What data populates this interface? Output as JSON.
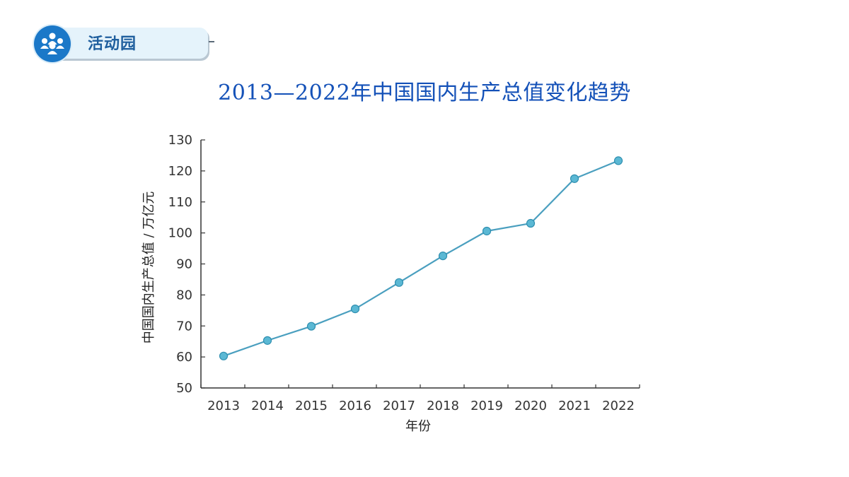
{
  "badge": {
    "label": "活动园",
    "icon": "people-group-icon"
  },
  "chart_data": {
    "type": "line",
    "title": "2013—2022年中国国内生产总值变化趋势",
    "xlabel": "年份",
    "ylabel": "中国国内生产总值 / 万亿元",
    "categories": [
      "2013",
      "2014",
      "2015",
      "2016",
      "2017",
      "2018",
      "2019",
      "2020",
      "2021",
      "2022"
    ],
    "series": [
      {
        "values": [
          60.3,
          65.3,
          69.9,
          75.5,
          84.0,
          92.6,
          100.6,
          103.1,
          117.5,
          123.3
        ]
      }
    ],
    "ylim": [
      50,
      130
    ],
    "yticks": [
      50,
      60,
      70,
      80,
      90,
      100,
      110,
      120,
      130
    ],
    "grid": false,
    "legend": "none",
    "colors": {
      "line": "#4a9fbf",
      "marker": "#5bb8d4",
      "marker_stroke": "#2f8fb0",
      "axis": "#333333",
      "title": "#1451b8"
    }
  }
}
